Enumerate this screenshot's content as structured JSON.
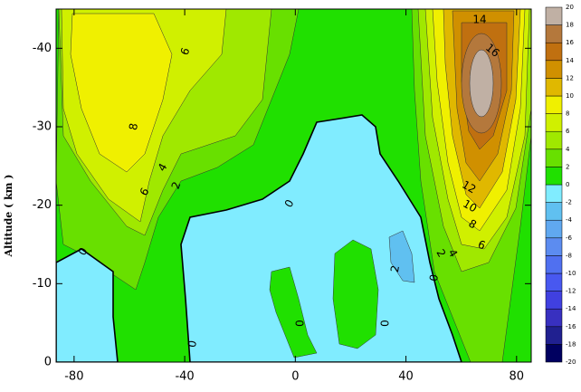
{
  "chart_data": {
    "type": "contour",
    "ylabel": "Altitude   ( km )",
    "xlim": [
      -86.5,
      85.3
    ],
    "xticks": [
      -80,
      -40,
      0,
      40,
      80
    ],
    "ylim": [
      0,
      -45
    ],
    "yticks": [
      0,
      -10,
      -20,
      -30,
      -40
    ],
    "levels": [
      -20,
      -18,
      -16,
      -14,
      -12,
      -10,
      -8,
      -6,
      -4,
      -2,
      0,
      2,
      4,
      6,
      8,
      10,
      12,
      14,
      16,
      18,
      20
    ],
    "colors": [
      "#000060",
      "#202090",
      "#3830c0",
      "#4040e0",
      "#4858f0",
      "#5070f0",
      "#5c8cf0",
      "#60a8f0",
      "#60c0f0",
      "#80ecff",
      "#20e000",
      "#68e000",
      "#a0e800",
      "#d0f000",
      "#f0f000",
      "#e0b800",
      "#d09000",
      "#c07010",
      "#b4783c",
      "#c0b0a4"
    ],
    "contour_labels": [
      6,
      8,
      6,
      4,
      2,
      0,
      0,
      0,
      0,
      0,
      0,
      2,
      2,
      4,
      6,
      8,
      10,
      12,
      14,
      16
    ]
  }
}
